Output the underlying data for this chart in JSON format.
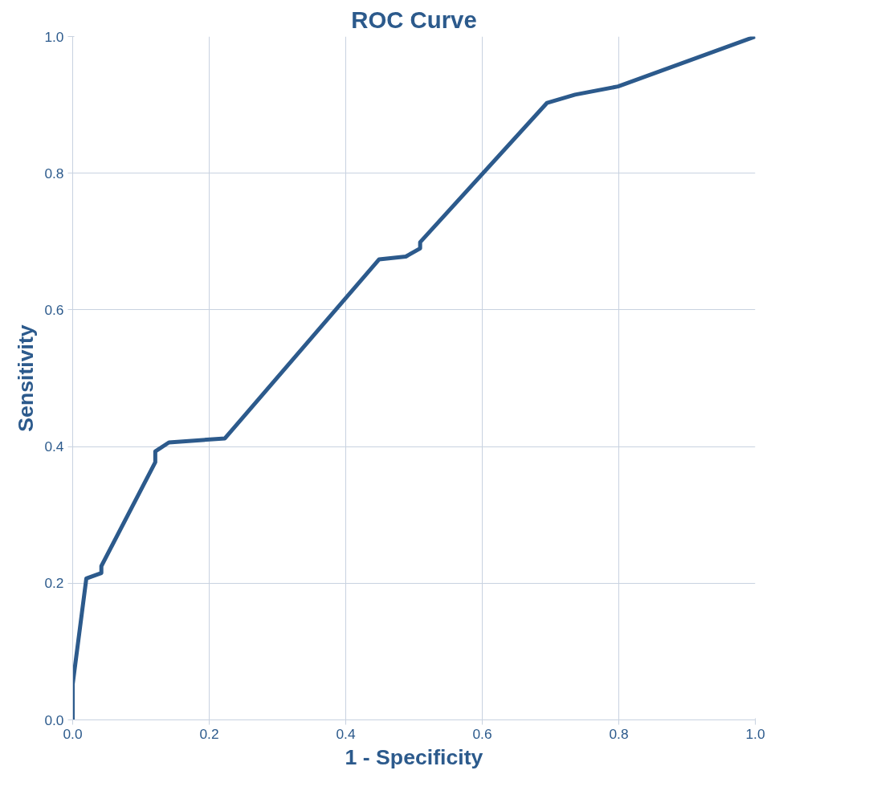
{
  "chart_data": {
    "type": "line",
    "title": "ROC Curve",
    "xlabel": "1 - Specificity",
    "ylabel": "Sensitivity",
    "x": [
      0,
      0,
      0.02,
      0.042,
      0.042,
      0.121,
      0.121,
      0.141,
      0.223,
      0.449,
      0.488,
      0.509,
      0.509,
      0.695,
      0.736,
      0.799,
      1
    ],
    "series": [
      {
        "color": "#2c5a8c",
        "values": [
          0,
          0.052,
          0.207,
          0.215,
          0.225,
          0.377,
          0.393,
          0.406,
          0.412,
          0.674,
          0.678,
          0.69,
          0.699,
          0.903,
          0.915,
          0.927,
          1
        ]
      }
    ],
    "xlim": [
      0,
      1
    ],
    "ylim": [
      0,
      1
    ],
    "xticks": [
      {
        "value": 0,
        "label": "0.0"
      },
      0.2,
      0.4,
      0.6,
      0.8,
      {
        "value": 1,
        "label": "1.0"
      }
    ],
    "yticks": [
      {
        "value": 0,
        "label": "0.0"
      },
      0.2,
      0.4,
      0.6,
      0.8,
      {
        "value": 1,
        "label": "1.0"
      }
    ],
    "grid": true,
    "line_style": "solid",
    "marker": "none"
  }
}
